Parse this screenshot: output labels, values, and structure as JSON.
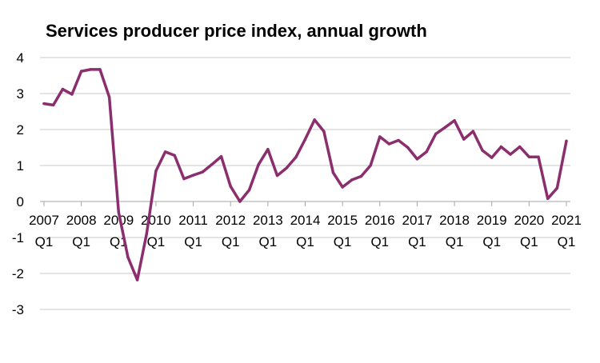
{
  "chart_data": {
    "type": "line",
    "title": "Services producer price index, annual growth",
    "xlabel": "",
    "ylabel": "",
    "ylim": [
      -3,
      4
    ],
    "y_ticks": [
      "4",
      "3",
      "2",
      "1",
      "0",
      "-1",
      "-2",
      "-3"
    ],
    "grid": true,
    "legend": "none",
    "x_tick_labels": [
      {
        "year": "2007",
        "quarter": "Q1"
      },
      {
        "year": "2008",
        "quarter": "Q1"
      },
      {
        "year": "2009",
        "quarter": "Q1"
      },
      {
        "year": "2010",
        "quarter": "Q1"
      },
      {
        "year": "2011",
        "quarter": "Q1"
      },
      {
        "year": "2012",
        "quarter": "Q1"
      },
      {
        "year": "2013",
        "quarter": "Q1"
      },
      {
        "year": "2014",
        "quarter": "Q1"
      },
      {
        "year": "2015",
        "quarter": "Q1"
      },
      {
        "year": "2016",
        "quarter": "Q1"
      },
      {
        "year": "2017",
        "quarter": "Q1"
      },
      {
        "year": "2018",
        "quarter": "Q1"
      },
      {
        "year": "2019",
        "quarter": "Q1"
      },
      {
        "year": "2020",
        "quarter": "Q1"
      },
      {
        "year": "2021",
        "quarter": "Q1"
      }
    ],
    "x": [
      "2007 Q1",
      "2007 Q2",
      "2007 Q3",
      "2007 Q4",
      "2008 Q1",
      "2008 Q2",
      "2008 Q3",
      "2008 Q4",
      "2009 Q1",
      "2009 Q2",
      "2009 Q3",
      "2009 Q4",
      "2010 Q1",
      "2010 Q2",
      "2010 Q3",
      "2010 Q4",
      "2011 Q1",
      "2011 Q2",
      "2011 Q3",
      "2011 Q4",
      "2012 Q1",
      "2012 Q2",
      "2012 Q3",
      "2012 Q4",
      "2013 Q1",
      "2013 Q2",
      "2013 Q3",
      "2013 Q4",
      "2014 Q1",
      "2014 Q2",
      "2014 Q3",
      "2014 Q4",
      "2015 Q1",
      "2015 Q2",
      "2015 Q3",
      "2015 Q4",
      "2016 Q1",
      "2016 Q2",
      "2016 Q3",
      "2016 Q4",
      "2017 Q1",
      "2017 Q2",
      "2017 Q3",
      "2017 Q4",
      "2018 Q1",
      "2018 Q2",
      "2018 Q3",
      "2018 Q4",
      "2019 Q1",
      "2019 Q2",
      "2019 Q3",
      "2019 Q4",
      "2020 Q1",
      "2020 Q2",
      "2020 Q3",
      "2020 Q4",
      "2021 Q1"
    ],
    "series": [
      {
        "color": "#8b2e6e",
        "values": [
          2.72,
          2.68,
          3.12,
          2.98,
          3.62,
          3.67,
          3.67,
          2.9,
          -0.3,
          -1.55,
          -2.18,
          -0.9,
          0.85,
          1.38,
          1.28,
          0.63,
          0.73,
          0.82,
          1.03,
          1.25,
          0.42,
          0.0,
          0.32,
          1.03,
          1.45,
          0.72,
          0.93,
          1.23,
          1.73,
          2.27,
          1.95,
          0.8,
          0.4,
          0.6,
          0.7,
          1.0,
          1.8,
          1.6,
          1.7,
          1.5,
          1.18,
          1.38,
          1.88,
          2.06,
          2.25,
          1.73,
          1.95,
          1.42,
          1.22,
          1.52,
          1.31,
          1.52,
          1.24,
          1.24,
          0.08,
          0.37,
          1.68
        ]
      }
    ]
  }
}
